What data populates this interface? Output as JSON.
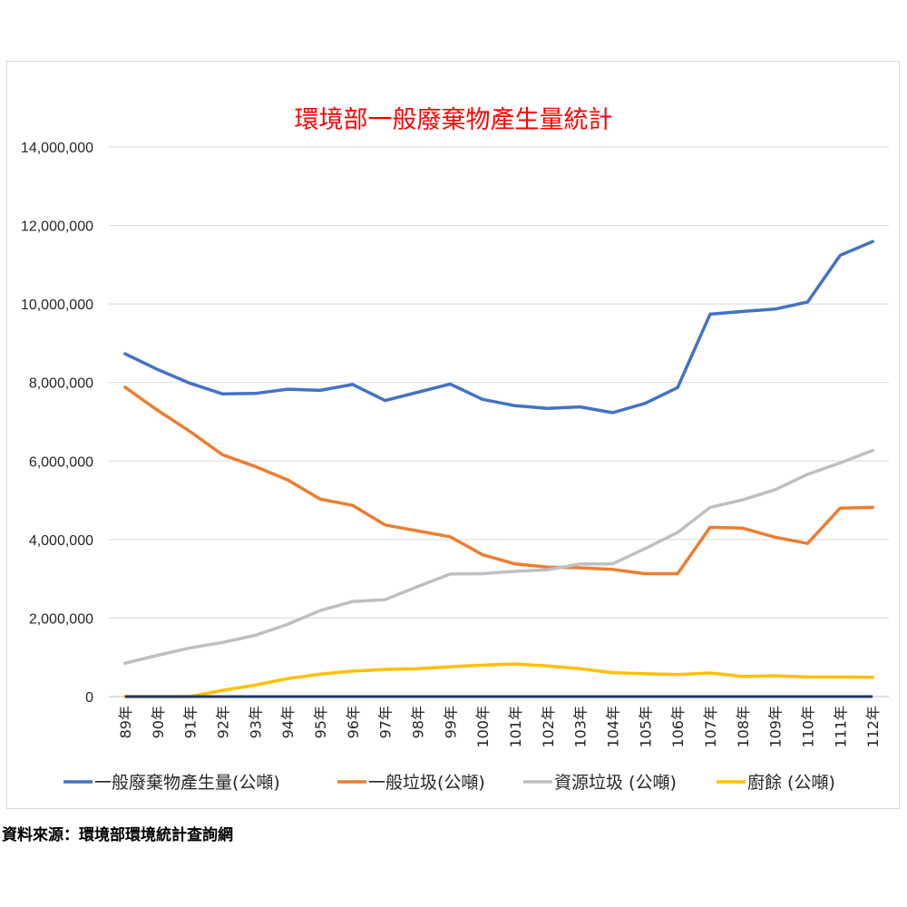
{
  "chart_data": {
    "type": "line",
    "title": "環境部一般廢棄物產生量統計",
    "xlabel": "",
    "ylabel": "",
    "ylim": [
      0,
      14000000
    ],
    "yticks": [
      0,
      2000000,
      4000000,
      6000000,
      8000000,
      10000000,
      12000000,
      14000000
    ],
    "ytick_labels": [
      "0",
      "2,000,000",
      "4,000,000",
      "6,000,000",
      "8,000,000",
      "10,000,000",
      "12,000,000",
      "14,000,000"
    ],
    "grid": true,
    "legend_position": "bottom",
    "categories": [
      "89年",
      "90年",
      "91年",
      "92年",
      "93年",
      "94年",
      "95年",
      "96年",
      "97年",
      "98年",
      "99年",
      "100年",
      "101年",
      "102年",
      "103年",
      "104年",
      "105年",
      "106年",
      "107年",
      "108年",
      "109年",
      "110年",
      "111年",
      "112年"
    ],
    "series": [
      {
        "name": "一般廢棄物產生量(公噸)",
        "color": "#4472c4",
        "values": [
          8730000,
          8330000,
          7980000,
          7710000,
          7720000,
          7830000,
          7800000,
          7950000,
          7540000,
          7750000,
          7960000,
          7570000,
          7410000,
          7340000,
          7380000,
          7230000,
          7470000,
          7870000,
          9740000,
          9810000,
          9870000,
          10050000,
          11240000,
          11590000
        ]
      },
      {
        "name": "一般垃圾(公噸)",
        "color": "#ed7d31",
        "values": [
          7880000,
          7290000,
          6750000,
          6160000,
          5860000,
          5520000,
          5030000,
          4870000,
          4370000,
          4220000,
          4070000,
          3610000,
          3380000,
          3300000,
          3280000,
          3240000,
          3130000,
          3130000,
          4310000,
          4290000,
          4060000,
          3900000,
          4800000,
          4820000
        ]
      },
      {
        "name": "資源垃圾 (公噸)",
        "color": "#bfbfbf",
        "values": [
          850000,
          1050000,
          1240000,
          1380000,
          1560000,
          1840000,
          2190000,
          2420000,
          2470000,
          2800000,
          3120000,
          3130000,
          3190000,
          3230000,
          3380000,
          3380000,
          3770000,
          4180000,
          4820000,
          5010000,
          5270000,
          5660000,
          5950000,
          6270000
        ]
      },
      {
        "name": "廚餘 (公噸)",
        "color": "#ffc000",
        "values": [
          0,
          0,
          0,
          160000,
          290000,
          460000,
          570000,
          650000,
          690000,
          710000,
          760000,
          800000,
          830000,
          780000,
          710000,
          610000,
          580000,
          560000,
          600000,
          510000,
          530000,
          500000,
          500000,
          490000
        ]
      }
    ]
  },
  "source_note": "資料來源：環境部環境統計查詢網"
}
